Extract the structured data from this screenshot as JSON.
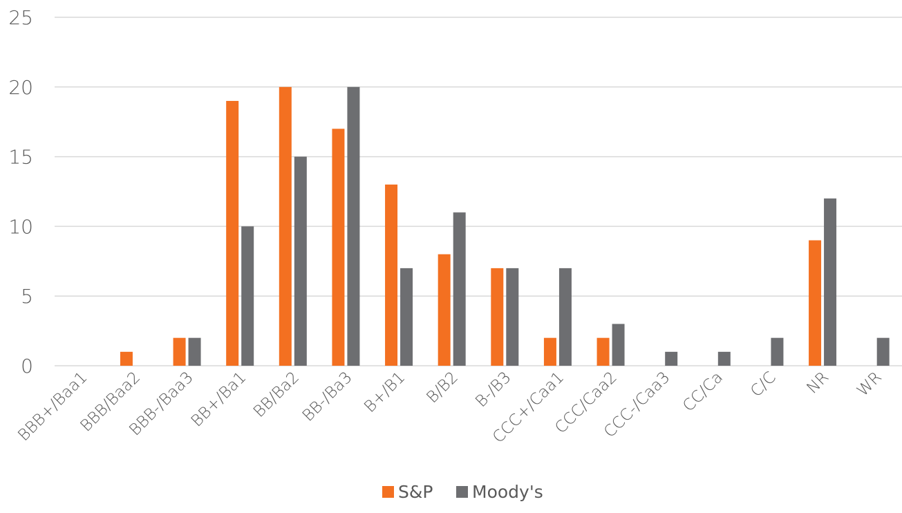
{
  "chart_data": {
    "type": "bar",
    "title": "",
    "xlabel": "",
    "ylabel": "",
    "ylim": [
      0,
      25
    ],
    "yticks": [
      0,
      5,
      10,
      15,
      20,
      25
    ],
    "grid": true,
    "legend_position": "bottom",
    "categories": [
      "BBB+/Baa1",
      "BBB/Baa2",
      "BBB-/Baa3",
      "BB+/Ba1",
      "BB/Ba2",
      "BB-/Ba3",
      "B+/B1",
      "B/B2",
      "B-/B3",
      "CCC+/Caa1",
      "CCC/Caa2",
      "CCC-/Caa3",
      "CC/Ca",
      "C/C",
      "NR",
      "WR"
    ],
    "series": [
      {
        "name": "S&P",
        "color": "#F37021",
        "values": [
          0,
          1,
          2,
          19,
          20,
          17,
          13,
          8,
          7,
          2,
          2,
          0,
          0,
          0,
          9,
          0
        ]
      },
      {
        "name": "Moody's",
        "color": "#6D6E71",
        "values": [
          0,
          0,
          2,
          10,
          15,
          20,
          7,
          11,
          7,
          7,
          3,
          1,
          1,
          2,
          12,
          2
        ]
      }
    ]
  }
}
